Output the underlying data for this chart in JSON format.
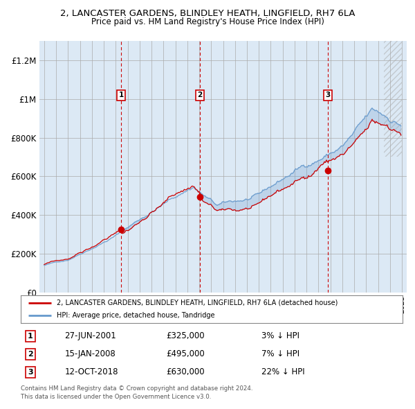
{
  "title1": "2, LANCASTER GARDENS, BLINDLEY HEATH, LINGFIELD, RH7 6LA",
  "title2": "Price paid vs. HM Land Registry's House Price Index (HPI)",
  "background_color": "#dce9f5",
  "plot_bg_color": "#dce9f5",
  "sale_prices": [
    325000,
    495000,
    630000
  ],
  "sale_labels": [
    "1",
    "2",
    "3"
  ],
  "sale_info": [
    {
      "label": "1",
      "date": "27-JUN-2001",
      "price": "£325,000",
      "note": "3% ↓ HPI"
    },
    {
      "label": "2",
      "date": "15-JAN-2008",
      "price": "£495,000",
      "note": "7% ↓ HPI"
    },
    {
      "label": "3",
      "date": "12-OCT-2018",
      "price": "£630,000",
      "note": "22% ↓ HPI"
    }
  ],
  "legend_line1": "2, LANCASTER GARDENS, BLINDLEY HEATH, LINGFIELD, RH7 6LA (detached house)",
  "legend_line2": "HPI: Average price, detached house, Tandridge",
  "footer1": "Contains HM Land Registry data © Crown copyright and database right 2024.",
  "footer2": "This data is licensed under the Open Government Licence v3.0.",
  "hpi_color": "#6699cc",
  "sale_line_color": "#cc0000",
  "dashed_line_color": "#cc0000",
  "ylim_max": 1300000,
  "yticks": [
    0,
    200000,
    400000,
    600000,
    800000,
    1000000,
    1200000
  ],
  "ytick_labels": [
    "£0",
    "£200K",
    "£400K",
    "£600K",
    "£800K",
    "£1M",
    "£1.2M"
  ]
}
